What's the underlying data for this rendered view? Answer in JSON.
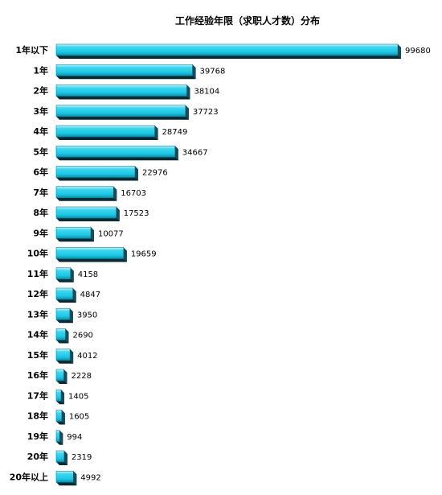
{
  "chart_data": {
    "type": "bar",
    "orientation": "horizontal",
    "title": "工作经验年限（求职人才数）分布",
    "categories": [
      "1年以下",
      "1年",
      "2年",
      "3年",
      "4年",
      "5年",
      "6年",
      "7年",
      "8年",
      "9年",
      "10年",
      "11年",
      "12年",
      "13年",
      "14年",
      "15年",
      "16年",
      "17年",
      "18年",
      "19年",
      "20年",
      "20年以上"
    ],
    "values": [
      99680,
      39768,
      38104,
      37723,
      28749,
      34667,
      22976,
      16703,
      17523,
      10077,
      19659,
      4158,
      4847,
      3950,
      2690,
      4012,
      2228,
      1405,
      1605,
      994,
      2319,
      4992
    ],
    "xlim": [
      0,
      99680
    ],
    "grid": false,
    "legend": "none",
    "colors": {
      "bar_top": "#c8f4fb",
      "bar_face": "#1cc6e4",
      "bar_bottom": "#0a8fab",
      "bar_side": "#0b4f60",
      "shadow": "#0a2a33"
    }
  }
}
